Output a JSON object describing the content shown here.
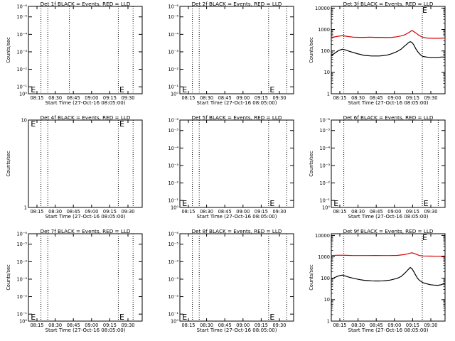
{
  "chart_data": [
    {
      "type": "line",
      "panel": 1,
      "title": "Det 1f BLACK = Events, RED = LLD",
      "xlabel": "Start Time (27-Oct-16 08:05:00)",
      "ylabel": "Counts/sec",
      "x_ticks": [
        "08:15",
        "08:30",
        "08:45",
        "09:00",
        "09:15",
        "09:30"
      ],
      "y_ticks": [
        "10⁰",
        "10⁻¹",
        "10⁻²",
        "10⁻³",
        "10⁻⁴",
        "10⁻⁵",
        "10⁻⁶"
      ],
      "y_scale": "log",
      "y_tick_pos": [
        0,
        0.08,
        0.28,
        0.48,
        0.68,
        0.88,
        1.0
      ],
      "vlines": [
        0.11,
        0.17,
        0.36,
        0.79,
        0.92
      ],
      "markers": [
        {
          "text": "E",
          "x": 0.02
        },
        {
          "text": "E",
          "x": 0.8
        }
      ],
      "marker_y": "bottom",
      "series": []
    },
    {
      "type": "line",
      "panel": 2,
      "title": "Det 2f BLACK = Events, RED = LLD",
      "xlabel": "Start Time (27-Oct-16 08:05:00)",
      "ylabel": "",
      "x_ticks": [
        "08:15",
        "08:30",
        "08:45",
        "09:00",
        "09:15",
        "09:30"
      ],
      "y_ticks": [
        "10⁰",
        "10⁻¹",
        "10⁻²",
        "10⁻³",
        "10⁻⁴",
        "10⁻⁵",
        "10⁻⁶"
      ],
      "y_scale": "log",
      "y_tick_pos": [
        0,
        0.08,
        0.28,
        0.48,
        0.68,
        0.88,
        1.0
      ],
      "vlines": [
        0.11,
        0.17,
        0.78,
        0.94
      ],
      "markers": [
        {
          "text": "E",
          "x": 0.02
        },
        {
          "text": "E",
          "x": 0.79
        }
      ],
      "marker_y": "bottom",
      "series": []
    },
    {
      "type": "line",
      "panel": 3,
      "title": "Det 3f BLACK = Events, RED = LLD",
      "xlabel": "Start Time (27-Oct-16 08:05:00)",
      "ylabel": "Counts/sec",
      "x_ticks": [
        "08:15",
        "08:30",
        "08:45",
        "09:00",
        "09:15",
        "09:30"
      ],
      "y_ticks": [
        "1",
        "10",
        "100",
        "1000",
        "10000"
      ],
      "y_scale": "log",
      "ylim": [
        1,
        12000
      ],
      "vlines": [
        0.11,
        0.8
      ],
      "markers": [
        {
          "text": "E",
          "x": 0.8
        }
      ],
      "marker_y": "top",
      "x_range_minutes": [
        0,
        62
      ],
      "series": [
        {
          "name": "LLD",
          "color": "#d40000",
          "x": [
            0,
            3,
            6,
            9,
            12,
            15,
            18,
            21,
            24,
            27,
            30,
            33,
            36,
            38,
            40,
            42,
            44,
            46,
            48,
            50,
            52,
            55,
            58,
            62
          ],
          "values": [
            420,
            470,
            520,
            470,
            440,
            430,
            430,
            440,
            430,
            430,
            420,
            430,
            460,
            500,
            560,
            700,
            900,
            700,
            520,
            430,
            400,
            390,
            390,
            400
          ]
        },
        {
          "name": "Events",
          "color": "#000000",
          "x": [
            0,
            2,
            4,
            6,
            8,
            10,
            12,
            14,
            16,
            18,
            20,
            22,
            24,
            26,
            28,
            30,
            32,
            34,
            36,
            38,
            40,
            41,
            42,
            43,
            44,
            45,
            46,
            47,
            48,
            49,
            50,
            52,
            54,
            56,
            58,
            60,
            62
          ],
          "values": [
            60,
            80,
            105,
            120,
            110,
            95,
            85,
            75,
            68,
            62,
            60,
            58,
            58,
            58,
            60,
            63,
            70,
            80,
            95,
            120,
            170,
            200,
            240,
            270,
            250,
            190,
            130,
            95,
            75,
            62,
            55,
            52,
            50,
            50,
            50,
            52,
            52
          ]
        }
      ]
    },
    {
      "type": "line",
      "panel": 4,
      "title": "Det 4f BLACK = Events, RED = LLD",
      "xlabel": "Start Time (27-Oct-16 08:05:00)",
      "ylabel": "Counts/sec",
      "x_ticks": [
        "08:15",
        "08:30",
        "08:45",
        "09:00",
        "09:15",
        "09:30"
      ],
      "y_ticks": [
        "1",
        "10"
      ],
      "y_scale": "log",
      "y_tick_pos": [
        0,
        1
      ],
      "vlines": [
        0.11,
        0.17,
        0.79,
        0.92
      ],
      "markers": [
        {
          "text": "E",
          "x": 0.02
        },
        {
          "text": "E",
          "x": 0.8
        }
      ],
      "marker_y": "top",
      "series": []
    },
    {
      "type": "line",
      "panel": 5,
      "title": "Det 5f BLACK = Events, RED = LLD",
      "xlabel": "Start Time (27-Oct-16 08:05:00)",
      "ylabel": "",
      "x_ticks": [
        "08:15",
        "08:30",
        "08:45",
        "09:00",
        "09:15",
        "09:30"
      ],
      "y_ticks": [
        "10⁰",
        "10⁻¹",
        "10⁻²",
        "10⁻³",
        "10⁻⁴",
        "10⁻⁵",
        "10⁻⁶"
      ],
      "y_scale": "log",
      "y_tick_pos": [
        0,
        0.08,
        0.28,
        0.48,
        0.68,
        0.88,
        1.0
      ],
      "vlines": [
        0.11,
        0.17,
        0.78,
        0.94
      ],
      "markers": [
        {
          "text": "E",
          "x": 0.02
        },
        {
          "text": "E",
          "x": 0.79
        }
      ],
      "marker_y": "bottom",
      "series": []
    },
    {
      "type": "line",
      "panel": 6,
      "title": "Det 6f BLACK = Events, RED = LLD",
      "xlabel": "Start Time (27-Oct-16 08:05:00)",
      "ylabel": "Counts/sec",
      "x_ticks": [
        "08:15",
        "08:30",
        "08:45",
        "09:00",
        "09:15",
        "09:30"
      ],
      "y_ticks": [
        "10⁰",
        "10⁻¹",
        "10⁻²",
        "10⁻³",
        "10⁻⁴",
        "10⁻⁵",
        "10⁻⁶"
      ],
      "y_scale": "log",
      "y_tick_pos": [
        0,
        0.08,
        0.28,
        0.48,
        0.68,
        0.88,
        1.0
      ],
      "vlines": [
        0.11,
        0.8,
        0.94
      ],
      "markers": [
        {
          "text": "E",
          "x": 0.02
        },
        {
          "text": "E",
          "x": 0.81
        }
      ],
      "marker_y": "bottom",
      "series": []
    },
    {
      "type": "line",
      "panel": 7,
      "title": "Det 7f BLACK = Events, RED = LLD",
      "xlabel": "Start Time (27-Oct-16 08:05:00)",
      "ylabel": "Counts/sec",
      "x_ticks": [
        "08:15",
        "08:30",
        "08:45",
        "09:00",
        "09:15",
        "09:30"
      ],
      "y_ticks": [
        "10⁰",
        "10⁻¹",
        "10⁻²",
        "10⁻³",
        "10⁻⁴",
        "10⁻⁵",
        "10⁻⁶"
      ],
      "y_scale": "log",
      "y_tick_pos": [
        0,
        0.08,
        0.28,
        0.48,
        0.68,
        0.88,
        1.0
      ],
      "vlines": [
        0.11,
        0.17,
        0.79,
        0.92
      ],
      "markers": [
        {
          "text": "E",
          "x": 0.02
        },
        {
          "text": "E",
          "x": 0.8
        }
      ],
      "marker_y": "bottom",
      "series": []
    },
    {
      "type": "line",
      "panel": 8,
      "title": "Det 8f BLACK = Events, RED = LLD",
      "xlabel": "Start Time (27-Oct-16 08:05:00)",
      "ylabel": "",
      "x_ticks": [
        "08:15",
        "08:30",
        "08:45",
        "09:00",
        "09:15",
        "09:30"
      ],
      "y_ticks": [
        "10⁰",
        "10⁻¹",
        "10⁻²",
        "10⁻³",
        "10⁻⁴",
        "10⁻⁵",
        "10⁻⁶"
      ],
      "y_scale": "log",
      "y_tick_pos": [
        0,
        0.08,
        0.28,
        0.48,
        0.68,
        0.88,
        1.0
      ],
      "vlines": [
        0.11,
        0.17,
        0.78,
        0.94
      ],
      "markers": [
        {
          "text": "E",
          "x": 0.02
        },
        {
          "text": "E",
          "x": 0.79
        }
      ],
      "marker_y": "bottom",
      "series": []
    },
    {
      "type": "line",
      "panel": 9,
      "title": "Det 9f BLACK = Events, RED = LLD",
      "xlabel": "Start Time (27-Oct-16 08:05:00)",
      "ylabel": "Counts/sec",
      "x_ticks": [
        "08:15",
        "08:30",
        "08:45",
        "09:00",
        "09:15",
        "09:30"
      ],
      "y_ticks": [
        "1",
        "10",
        "100",
        "1000",
        "10000"
      ],
      "y_scale": "log",
      "ylim": [
        1,
        12000
      ],
      "vlines": [
        0.11,
        0.8
      ],
      "markers": [
        {
          "text": "E",
          "x": 0.8
        }
      ],
      "marker_y": "top",
      "x_range_minutes": [
        0,
        62
      ],
      "series": [
        {
          "name": "LLD",
          "color": "#d40000",
          "x": [
            0,
            4,
            8,
            12,
            16,
            20,
            24,
            28,
            32,
            36,
            38,
            40,
            42,
            44,
            46,
            48,
            50,
            54,
            58,
            62
          ],
          "values": [
            1150,
            1200,
            1180,
            1150,
            1150,
            1150,
            1160,
            1150,
            1150,
            1170,
            1220,
            1280,
            1400,
            1550,
            1350,
            1150,
            1100,
            1080,
            1070,
            1080
          ]
        },
        {
          "name": "Events",
          "color": "#000000",
          "x": [
            0,
            2,
            4,
            6,
            8,
            10,
            12,
            14,
            16,
            18,
            20,
            22,
            24,
            26,
            28,
            30,
            32,
            34,
            36,
            38,
            40,
            41,
            42,
            43,
            44,
            45,
            46,
            47,
            48,
            50,
            52,
            54,
            56,
            58,
            60,
            62
          ],
          "values": [
            90,
            110,
            130,
            140,
            125,
            110,
            100,
            92,
            85,
            80,
            78,
            76,
            75,
            75,
            76,
            78,
            82,
            90,
            100,
            120,
            170,
            210,
            260,
            320,
            280,
            200,
            140,
            100,
            80,
            62,
            55,
            50,
            48,
            47,
            50,
            60
          ]
        }
      ]
    }
  ]
}
